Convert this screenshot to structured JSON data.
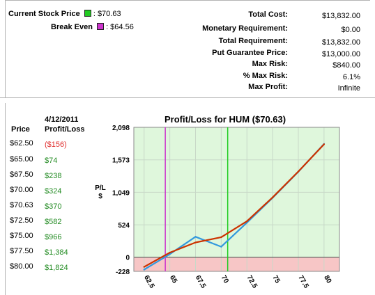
{
  "summary": {
    "current_stock_price_label": "Current Stock Price",
    "current_stock_price_value": ": $70.63",
    "break_even_label": "Break Even",
    "break_even_value": ": $64.56",
    "right_rows": [
      {
        "label": "Total Cost:",
        "value": "$13,832.00"
      },
      {
        "label": "Monetary Requirement:",
        "value": "$0.00"
      },
      {
        "label": "Total Requirement:",
        "value": "$13,832.00"
      },
      {
        "label": "Put Guarantee Price:",
        "value": "$13,000.00"
      },
      {
        "label": "Max Risk:",
        "value": "$840.00"
      },
      {
        "label": "% Max Risk:",
        "value": "6.1%"
      },
      {
        "label": "Max Profit:",
        "value": "Infinite"
      }
    ]
  },
  "table": {
    "date_header": "4/12/2011",
    "price_header": "Price",
    "pl_header": "Profit/Loss",
    "rows": [
      {
        "price": "$62.50",
        "pl": "($156)",
        "color": "#e03030"
      },
      {
        "price": "$65.00",
        "pl": "$74",
        "color": "#228b22"
      },
      {
        "price": "$67.50",
        "pl": "$238",
        "color": "#228b22"
      },
      {
        "price": "$70.00",
        "pl": "$324",
        "color": "#228b22"
      },
      {
        "price": "$70.63",
        "pl": "$370",
        "color": "#228b22"
      },
      {
        "price": "$72.50",
        "pl": "$582",
        "color": "#228b22"
      },
      {
        "price": "$75.00",
        "pl": "$966",
        "color": "#228b22"
      },
      {
        "price": "$77.50",
        "pl": "$1,384",
        "color": "#228b22"
      },
      {
        "price": "$80.00",
        "pl": "$1,824",
        "color": "#228b22"
      }
    ]
  },
  "colors": {
    "current_price_marker": "#22cc22",
    "break_even_marker": "#cc33cc",
    "profit_zone": "#dff7dc",
    "loss_zone": "#f7c6c6",
    "today_line": "#cc3300",
    "expiry_line": "#3399dd"
  },
  "chart_data": {
    "type": "line",
    "title": "Profit/Loss for HUM ($70.63)",
    "ylabel": "P/L\n$",
    "xlabel": "",
    "xlim": [
      61.5,
      81.5
    ],
    "ylim": [
      -228,
      2098
    ],
    "yticks": [
      2098,
      1573,
      1049,
      524,
      0,
      -228
    ],
    "ytick_labels": [
      "2,098",
      "1,573",
      "1,049",
      "524",
      "0",
      "-228"
    ],
    "xticks": [
      62.5,
      65,
      67.5,
      70,
      72.5,
      75,
      77.5,
      80
    ],
    "xtick_labels": [
      "62.5",
      "65",
      "67.5",
      "70",
      "72.5",
      "75",
      "77.5",
      "80"
    ],
    "grid": true,
    "vlines": [
      {
        "name": "Break Even",
        "x": 64.56
      },
      {
        "name": "Current Stock Price",
        "x": 70.63
      }
    ],
    "series": [
      {
        "x": [
          62.5,
          65,
          67.5,
          70,
          72.5,
          75,
          77.5,
          80
        ],
        "y": [
          -156,
          74,
          238,
          324,
          582,
          966,
          1384,
          1824
        ]
      },
      {
        "x": [
          62.5,
          65,
          67.5,
          70,
          72.5,
          75,
          77.5,
          80
        ],
        "y": [
          -200,
          50,
          330,
          170,
          560,
          960,
          1380,
          1830
        ]
      }
    ]
  }
}
